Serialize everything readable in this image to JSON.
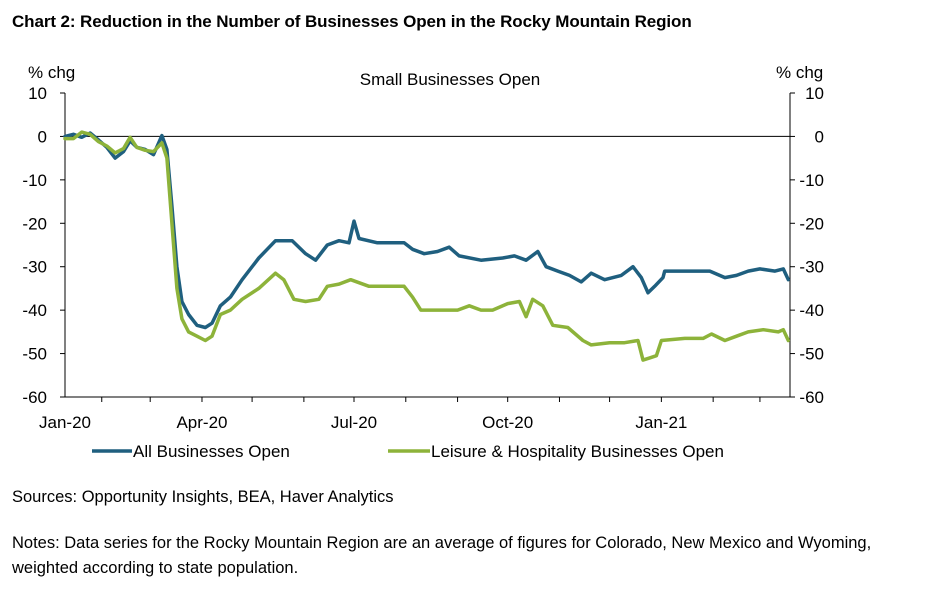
{
  "page": {
    "title": "Chart 2: Reduction in the Number of Businesses Open in the Rocky Mountain Region",
    "sources": "Sources: Opportunity Insights, BEA, Haver Analytics",
    "notes": "Notes: Data series for the Rocky Mountain Region are an average of figures for Colorado, New Mexico and Wyoming, weighted according to state population."
  },
  "colors": {
    "all_businesses": "#1f5f7f",
    "leisure_hospitality": "#8db33a",
    "axis": "#000000"
  },
  "chart_data": {
    "type": "line",
    "title": "Small Businesses Open",
    "ylabel_left": "% chg",
    "ylabel_right": "% chg",
    "ylim": [
      -60,
      10
    ],
    "yticks": [
      10,
      0,
      -10,
      -20,
      -30,
      -40,
      -50,
      -60
    ],
    "xlim": [
      "2020-01-10",
      "2021-03-19"
    ],
    "xticks": [
      {
        "date": "2020-01-10",
        "label": "Jan-20"
      },
      {
        "date": "2020-04-01",
        "label": "Apr-20"
      },
      {
        "date": "2020-07-01",
        "label": "Jul-20"
      },
      {
        "date": "2020-10-01",
        "label": "Oct-20"
      },
      {
        "date": "2021-01-01",
        "label": "Jan-21"
      }
    ],
    "grid": false,
    "legend_position": "bottom",
    "series": [
      {
        "name": "All Businesses Open",
        "color": "#1f5f7f",
        "points": [
          [
            "2020-01-10",
            0.0
          ],
          [
            "2020-01-15",
            0.5
          ],
          [
            "2020-01-20",
            -0.2
          ],
          [
            "2020-01-25",
            0.8
          ],
          [
            "2020-01-30",
            -0.8
          ],
          [
            "2020-02-04",
            -2.5
          ],
          [
            "2020-02-09",
            -5.0
          ],
          [
            "2020-02-14",
            -3.5
          ],
          [
            "2020-02-18",
            -1.0
          ],
          [
            "2020-02-22",
            -2.5
          ],
          [
            "2020-02-27",
            -3.0
          ],
          [
            "2020-03-03",
            -4.2
          ],
          [
            "2020-03-08",
            0.2
          ],
          [
            "2020-03-11",
            -3.0
          ],
          [
            "2020-03-14",
            -16.0
          ],
          [
            "2020-03-17",
            -30.0
          ],
          [
            "2020-03-20",
            -38.0
          ],
          [
            "2020-03-24",
            -41.0
          ],
          [
            "2020-03-29",
            -43.5
          ],
          [
            "2020-04-03",
            -44.0
          ],
          [
            "2020-04-07",
            -43.0
          ],
          [
            "2020-04-12",
            -39.0
          ],
          [
            "2020-04-18",
            -37.0
          ],
          [
            "2020-04-25",
            -33.0
          ],
          [
            "2020-05-05",
            -28.0
          ],
          [
            "2020-05-15",
            -24.0
          ],
          [
            "2020-05-25",
            -24.0
          ],
          [
            "2020-06-02",
            -27.0
          ],
          [
            "2020-06-08",
            -28.5
          ],
          [
            "2020-06-15",
            -25.0
          ],
          [
            "2020-06-22",
            -24.0
          ],
          [
            "2020-06-28",
            -24.5
          ],
          [
            "2020-07-01",
            -19.5
          ],
          [
            "2020-07-04",
            -23.5
          ],
          [
            "2020-07-15",
            -24.5
          ],
          [
            "2020-07-31",
            -24.5
          ],
          [
            "2020-08-05",
            -26.0
          ],
          [
            "2020-08-12",
            -27.0
          ],
          [
            "2020-08-20",
            -26.5
          ],
          [
            "2020-08-27",
            -25.5
          ],
          [
            "2020-09-02",
            -27.5
          ],
          [
            "2020-09-15",
            -28.5
          ],
          [
            "2020-09-28",
            -28.0
          ],
          [
            "2020-10-05",
            -27.5
          ],
          [
            "2020-10-12",
            -28.5
          ],
          [
            "2020-10-19",
            -26.5
          ],
          [
            "2020-10-24",
            -30.0
          ],
          [
            "2020-10-31",
            -31.0
          ],
          [
            "2020-11-07",
            -32.0
          ],
          [
            "2020-11-14",
            -33.5
          ],
          [
            "2020-11-20",
            -31.5
          ],
          [
            "2020-11-28",
            -33.0
          ],
          [
            "2020-12-08",
            -32.0
          ],
          [
            "2020-12-15",
            -30.0
          ],
          [
            "2020-12-20",
            -32.5
          ],
          [
            "2020-12-24",
            -36.0
          ],
          [
            "2020-12-28",
            -34.5
          ],
          [
            "2021-01-02",
            -32.5
          ],
          [
            "2021-01-03",
            -31.0
          ],
          [
            "2021-01-15",
            -31.0
          ],
          [
            "2021-01-30",
            -31.0
          ],
          [
            "2021-02-08",
            -32.5
          ],
          [
            "2021-02-15",
            -32.0
          ],
          [
            "2021-02-22",
            -31.0
          ],
          [
            "2021-03-01",
            -30.5
          ],
          [
            "2021-03-10",
            -31.0
          ],
          [
            "2021-03-15",
            -30.5
          ],
          [
            "2021-03-18",
            -33.0
          ]
        ]
      },
      {
        "name": "Leisure & Hospitality Businesses Open",
        "color": "#8db33a",
        "points": [
          [
            "2020-01-10",
            -0.5
          ],
          [
            "2020-01-15",
            -0.5
          ],
          [
            "2020-01-20",
            1.0
          ],
          [
            "2020-01-25",
            0.5
          ],
          [
            "2020-01-30",
            -1.2
          ],
          [
            "2020-02-04",
            -2.2
          ],
          [
            "2020-02-09",
            -3.8
          ],
          [
            "2020-02-14",
            -2.8
          ],
          [
            "2020-02-18",
            -0.2
          ],
          [
            "2020-02-22",
            -2.5
          ],
          [
            "2020-02-27",
            -3.2
          ],
          [
            "2020-03-03",
            -3.5
          ],
          [
            "2020-03-08",
            -1.5
          ],
          [
            "2020-03-11",
            -5.0
          ],
          [
            "2020-03-14",
            -20.0
          ],
          [
            "2020-03-17",
            -35.0
          ],
          [
            "2020-03-20",
            -42.0
          ],
          [
            "2020-03-24",
            -45.0
          ],
          [
            "2020-03-29",
            -46.0
          ],
          [
            "2020-04-03",
            -47.0
          ],
          [
            "2020-04-07",
            -46.0
          ],
          [
            "2020-04-12",
            -41.0
          ],
          [
            "2020-04-18",
            -40.0
          ],
          [
            "2020-04-25",
            -37.5
          ],
          [
            "2020-05-05",
            -35.0
          ],
          [
            "2020-05-15",
            -31.5
          ],
          [
            "2020-05-20",
            -33.0
          ],
          [
            "2020-05-26",
            -37.5
          ],
          [
            "2020-06-02",
            -38.0
          ],
          [
            "2020-06-10",
            -37.5
          ],
          [
            "2020-06-15",
            -34.5
          ],
          [
            "2020-06-22",
            -34.0
          ],
          [
            "2020-06-29",
            -33.0
          ],
          [
            "2020-07-10",
            -34.5
          ],
          [
            "2020-07-31",
            -34.5
          ],
          [
            "2020-08-05",
            -37.0
          ],
          [
            "2020-08-10",
            -40.0
          ],
          [
            "2020-08-20",
            -40.0
          ],
          [
            "2020-09-01",
            -40.0
          ],
          [
            "2020-09-08",
            -39.0
          ],
          [
            "2020-09-15",
            -40.0
          ],
          [
            "2020-09-22",
            -40.0
          ],
          [
            "2020-10-01",
            -38.5
          ],
          [
            "2020-10-08",
            -38.0
          ],
          [
            "2020-10-12",
            -41.5
          ],
          [
            "2020-10-16",
            -37.5
          ],
          [
            "2020-10-22",
            -39.0
          ],
          [
            "2020-10-28",
            -43.5
          ],
          [
            "2020-11-06",
            -44.0
          ],
          [
            "2020-11-15",
            -47.0
          ],
          [
            "2020-11-20",
            -48.0
          ],
          [
            "2020-12-01",
            -47.5
          ],
          [
            "2020-12-10",
            -47.5
          ],
          [
            "2020-12-18",
            -47.0
          ],
          [
            "2020-12-21",
            -51.5
          ],
          [
            "2020-12-25",
            -51.0
          ],
          [
            "2020-12-29",
            -50.5
          ],
          [
            "2021-01-01",
            -47.0
          ],
          [
            "2021-01-15",
            -46.5
          ],
          [
            "2021-01-26",
            -46.5
          ],
          [
            "2021-01-31",
            -45.5
          ],
          [
            "2021-02-08",
            -47.0
          ],
          [
            "2021-02-15",
            -46.0
          ],
          [
            "2021-02-22",
            -45.0
          ],
          [
            "2021-03-03",
            -44.5
          ],
          [
            "2021-03-12",
            -45.0
          ],
          [
            "2021-03-15",
            -44.5
          ],
          [
            "2021-03-18",
            -47.0
          ]
        ]
      }
    ]
  }
}
